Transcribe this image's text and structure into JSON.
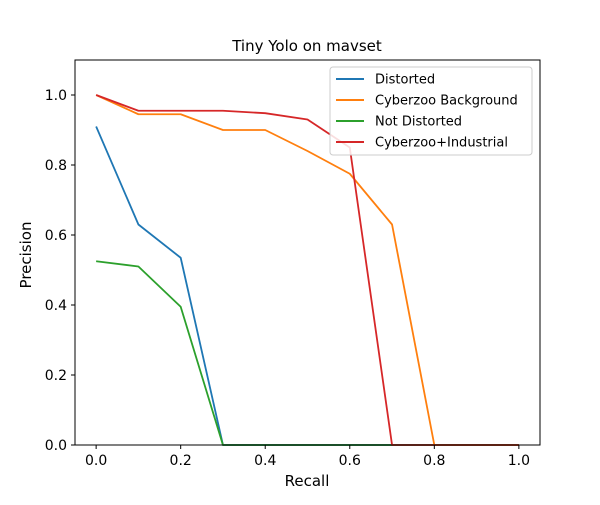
{
  "chart_data": {
    "type": "line",
    "title": "Tiny Yolo on mavset",
    "xlabel": "Recall",
    "ylabel": "Precision",
    "xlim": [
      -0.05,
      1.05
    ],
    "ylim": [
      0.0,
      1.1
    ],
    "xticks": [
      "0.0",
      "0.2",
      "0.4",
      "0.6",
      "0.8",
      "1.0"
    ],
    "yticks": [
      "0.0",
      "0.2",
      "0.4",
      "0.6",
      "0.8",
      "1.0"
    ],
    "grid": false,
    "legend_position": "top-right",
    "series": [
      {
        "name": "Distorted",
        "color": "#1f77b4",
        "x": [
          0.0,
          0.1,
          0.2,
          0.3,
          0.4,
          0.5,
          0.6,
          0.7,
          0.8,
          0.9,
          1.0
        ],
        "y": [
          0.91,
          0.63,
          0.535,
          0.0,
          0.0,
          0.0,
          0.0,
          0.0,
          0.0,
          0.0,
          0.0
        ]
      },
      {
        "name": "Cyberzoo Background",
        "color": "#ff7f0e",
        "x": [
          0.0,
          0.1,
          0.2,
          0.3,
          0.4,
          0.5,
          0.6,
          0.7,
          0.8,
          0.9,
          1.0
        ],
        "y": [
          1.0,
          0.945,
          0.945,
          0.9,
          0.9,
          0.84,
          0.775,
          0.63,
          0.0,
          0.0,
          0.0
        ]
      },
      {
        "name": "Not Distorted",
        "color": "#2ca02c",
        "x": [
          0.0,
          0.1,
          0.2,
          0.3,
          0.4,
          0.5,
          0.6,
          0.7,
          0.8,
          0.9,
          1.0
        ],
        "y": [
          0.525,
          0.51,
          0.395,
          0.0,
          0.0,
          0.0,
          0.0,
          0.0,
          0.0,
          0.0,
          0.0
        ]
      },
      {
        "name": "Cyberzoo+Industrial",
        "color": "#d62728",
        "x": [
          0.0,
          0.1,
          0.2,
          0.3,
          0.4,
          0.5,
          0.6,
          0.7,
          0.8,
          0.9,
          1.0
        ],
        "y": [
          1.0,
          0.955,
          0.955,
          0.955,
          0.948,
          0.93,
          0.85,
          0.0,
          0.0,
          0.0,
          0.0
        ]
      }
    ]
  }
}
